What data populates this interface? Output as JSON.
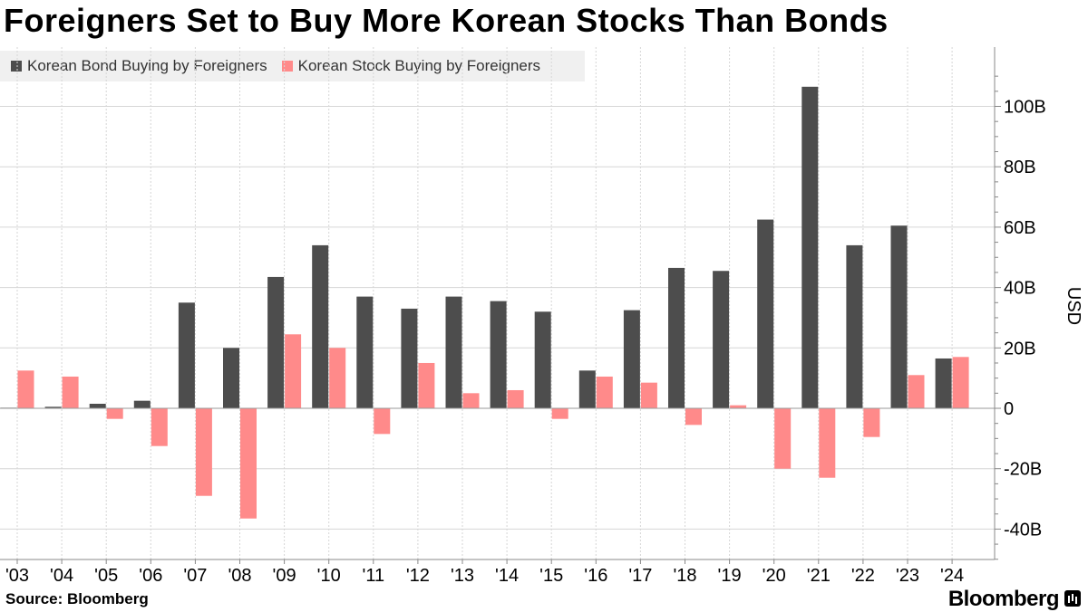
{
  "chart_data": {
    "type": "bar",
    "title": "Foreigners Set to Buy More Korean Stocks Than Bonds",
    "categories": [
      "'03",
      "'04",
      "'05",
      "'06",
      "'07",
      "'08",
      "'09",
      "'10",
      "'11",
      "'12",
      "'13",
      "'14",
      "'15",
      "'16",
      "'17",
      "'18",
      "'19",
      "'20",
      "'21",
      "'22",
      "'23",
      "'24"
    ],
    "series": [
      {
        "name": "Korean Bond Buying by Foreigners",
        "color": "#4d4d4d",
        "values": [
          0.2,
          0.5,
          1.5,
          2.5,
          35,
          20,
          43.5,
          54,
          37,
          33,
          37,
          35.5,
          32,
          12.5,
          32.5,
          46.5,
          45.5,
          62.5,
          106.5,
          54,
          60.5,
          16.5
        ]
      },
      {
        "name": "Korean Stock Buying by Foreigners",
        "color": "#ff8a8a",
        "values": [
          12.5,
          10.5,
          -3.5,
          -12.5,
          -29,
          -36.5,
          24.5,
          20,
          -8.5,
          15,
          5,
          6,
          -3.5,
          10.5,
          8.5,
          -5.5,
          1,
          -20,
          -23,
          -9.5,
          11,
          17
        ]
      }
    ],
    "ylabel": "USD",
    "ylim": [
      -50,
      120
    ],
    "yticks": [
      -40,
      -20,
      0,
      20,
      40,
      60,
      80,
      100
    ],
    "ytick_labels": [
      "-40B",
      "-20B",
      "0",
      "20B",
      "40B",
      "60B",
      "80B",
      "100B"
    ],
    "grid": true,
    "legend_position": "top-left"
  },
  "source": "Source: Bloomberg",
  "brand": "Bloomberg"
}
